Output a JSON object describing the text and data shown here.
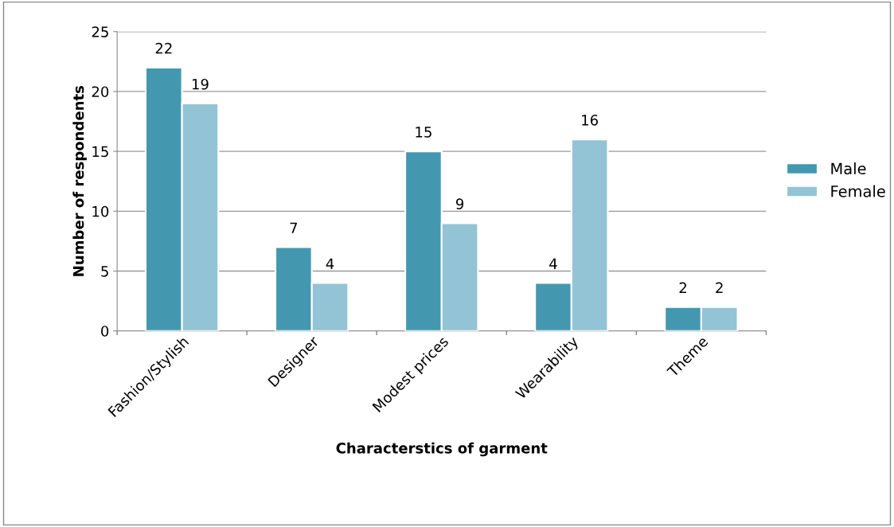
{
  "chart_data": {
    "type": "bar",
    "xlabel": "Characterstics of garment",
    "ylabel": "Number of respondents",
    "categories": [
      "Fashion/Stylish",
      "Designer",
      "Modest prices",
      "Wearability",
      "Theme"
    ],
    "series": [
      {
        "name": "Male",
        "color": "#4398b0",
        "values": [
          22,
          7,
          15,
          4,
          2
        ]
      },
      {
        "name": "Female",
        "color": "#93c4d6",
        "values": [
          19,
          4,
          9,
          16,
          2
        ]
      }
    ],
    "ylim": [
      0,
      25
    ],
    "yticks": [
      0,
      5,
      10,
      15,
      20,
      25
    ],
    "grid": "y",
    "legend": "right",
    "data_labels": true
  }
}
